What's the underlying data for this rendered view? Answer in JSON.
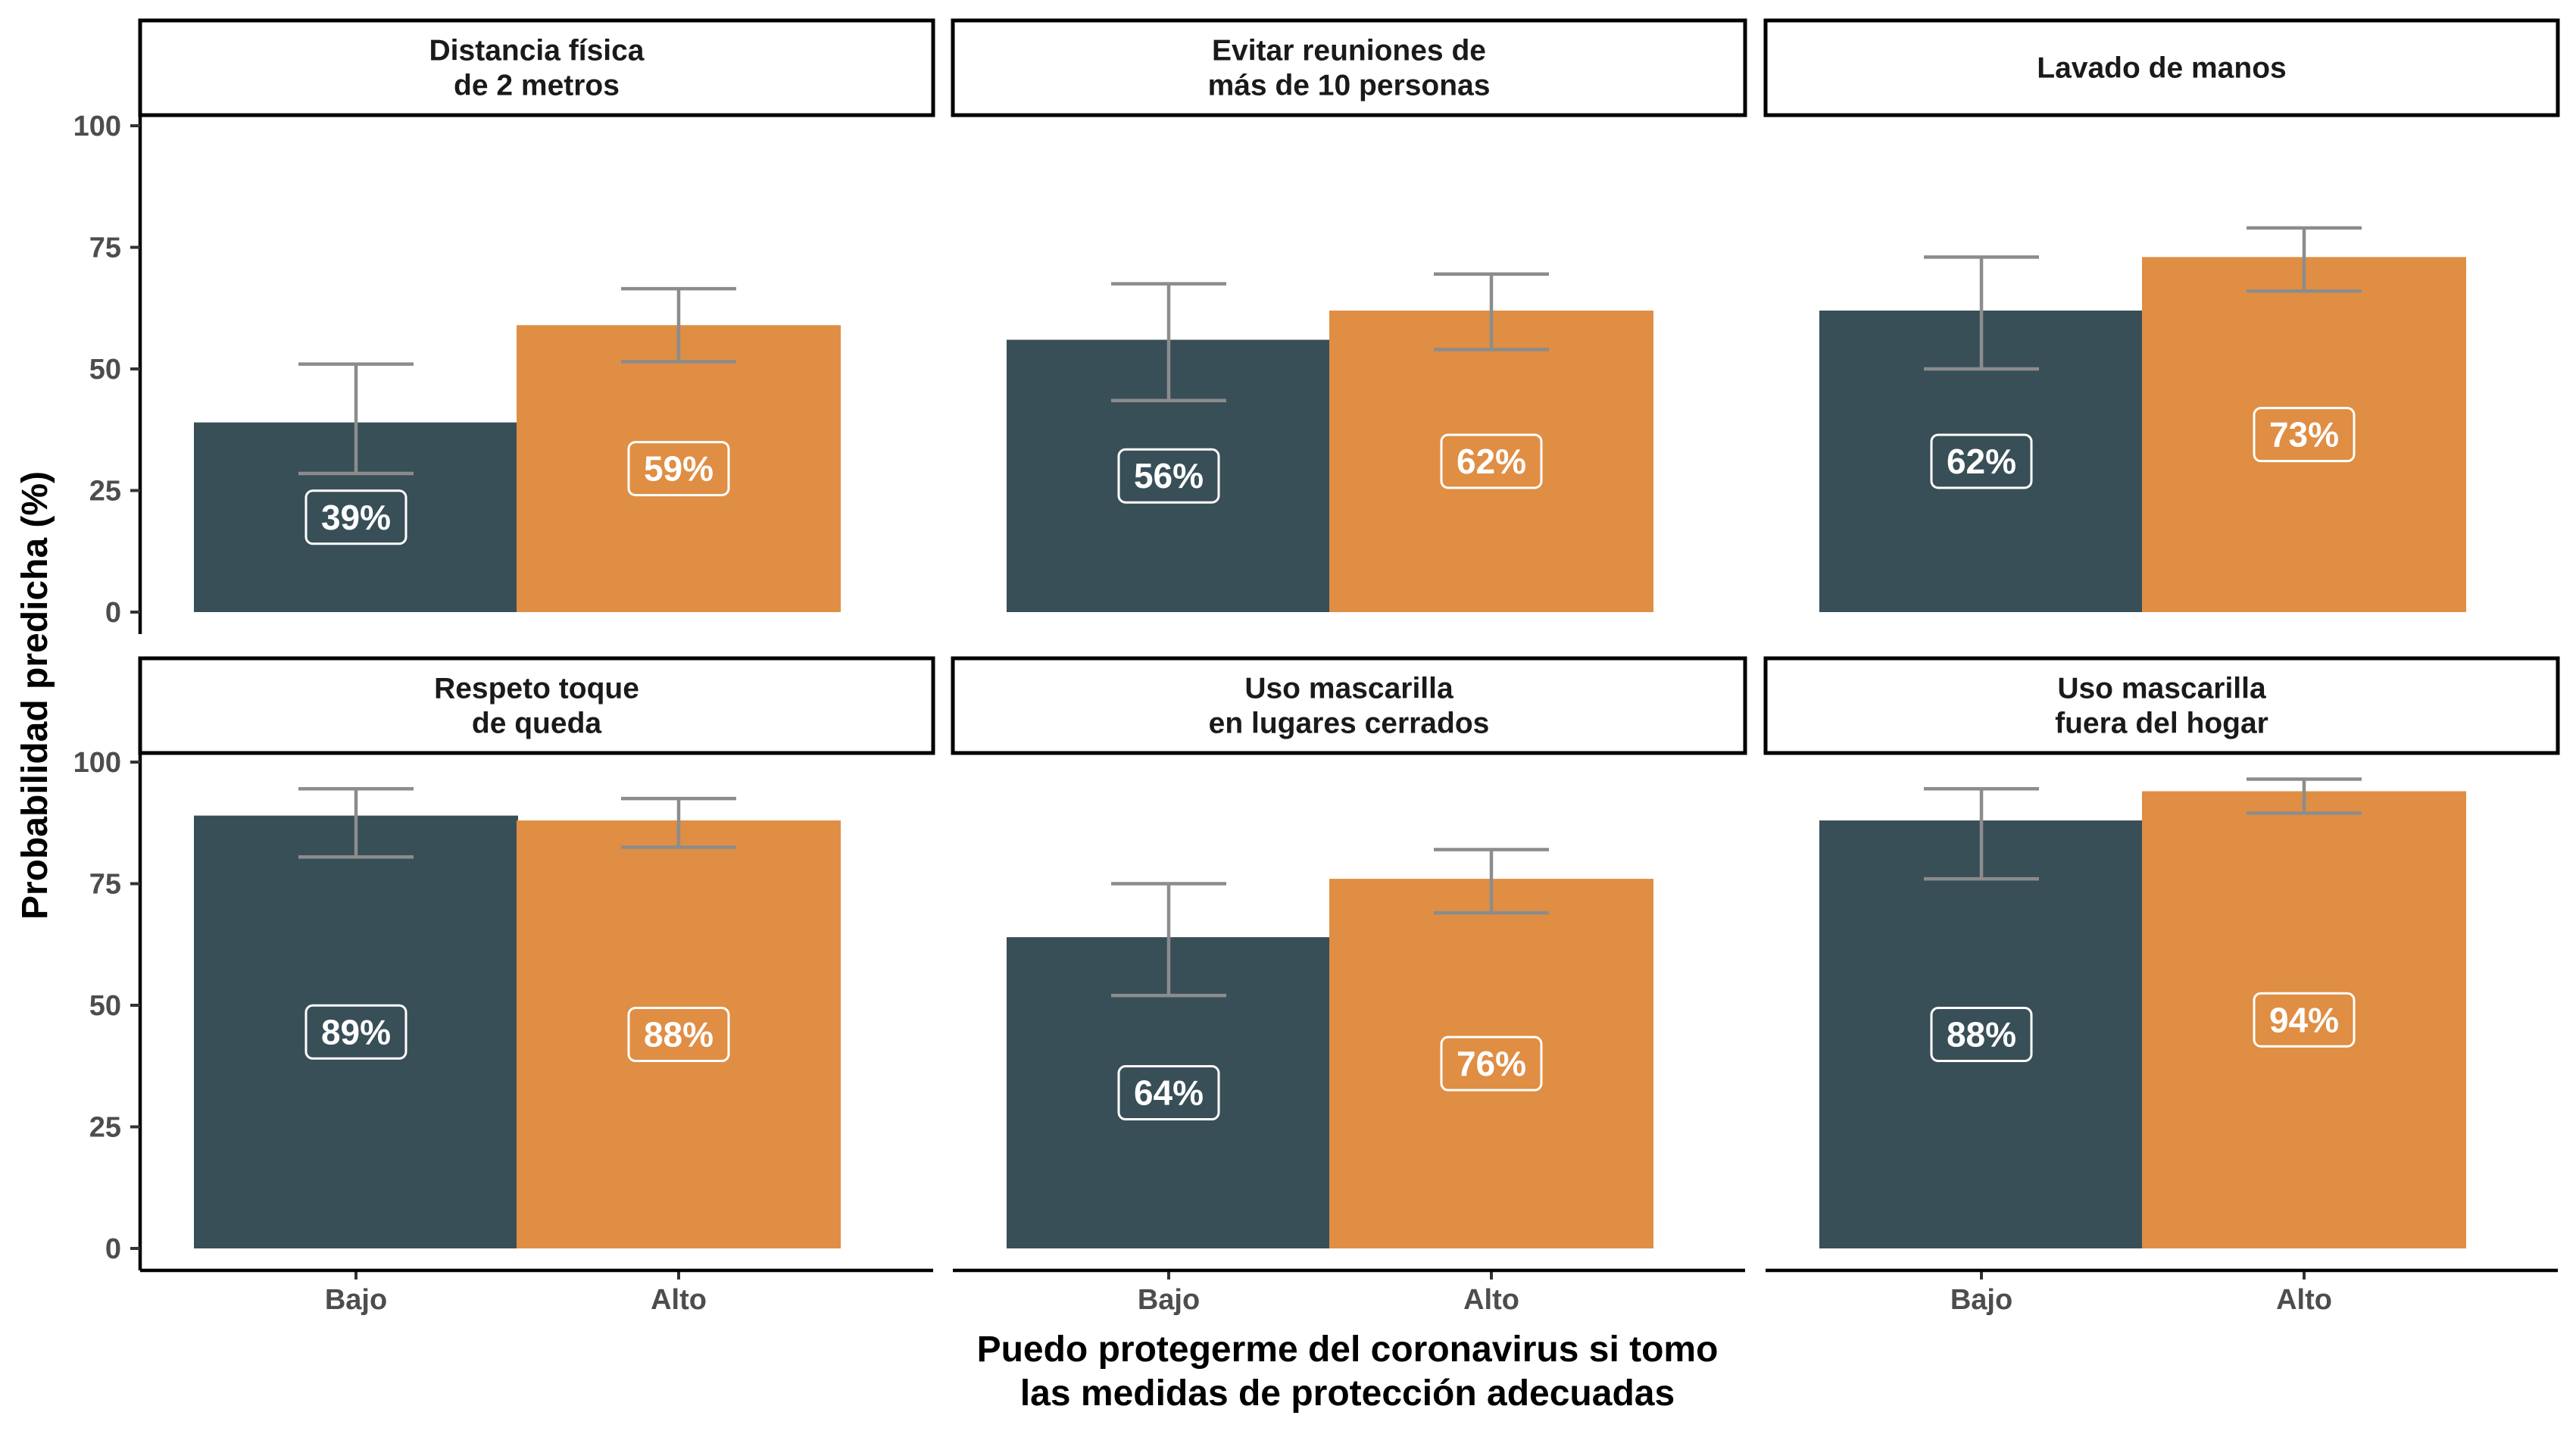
{
  "chart_data": {
    "type": "bar",
    "layout": "faceted 2x3",
    "ylabel": "Probabilidad predicha (%)",
    "xlabel": "Puedo protegerme del coronavirus si tomo las medidas de protección adecuadas",
    "xlabel_lines": [
      "Puedo protegerme del coronavirus si tomo",
      "las medidas de protección adecuadas"
    ],
    "categories": [
      "Bajo",
      "Alto"
    ],
    "category_colors": [
      "#384f57",
      "#df8e44"
    ],
    "error_bar_color": "#8c8c8c",
    "ylim": [
      0,
      100
    ],
    "yticks": [
      0,
      25,
      50,
      75,
      100
    ],
    "grid": false,
    "legend": "none",
    "panels": [
      {
        "title_lines": [
          "Distancia física",
          "de 2 metros"
        ],
        "values": [
          39,
          59
        ],
        "labels": [
          "39%",
          "59%"
        ],
        "ci_low": [
          28.5,
          51.5
        ],
        "ci_high": [
          51,
          66.5
        ]
      },
      {
        "title_lines": [
          "Evitar reuniones de",
          "más de 10 personas"
        ],
        "values": [
          56,
          62
        ],
        "labels": [
          "56%",
          "62%"
        ],
        "ci_low": [
          43.5,
          54
        ],
        "ci_high": [
          67.5,
          69.5
        ]
      },
      {
        "title_lines": [
          "Lavado de manos"
        ],
        "values": [
          62,
          73
        ],
        "labels": [
          "62%",
          "73%"
        ],
        "ci_low": [
          50,
          66
        ],
        "ci_high": [
          73,
          79
        ]
      },
      {
        "title_lines": [
          "Respeto toque",
          "de queda"
        ],
        "values": [
          89,
          88
        ],
        "labels": [
          "89%",
          "88%"
        ],
        "ci_low": [
          80.5,
          82.5
        ],
        "ci_high": [
          94.5,
          92.5
        ]
      },
      {
        "title_lines": [
          "Uso mascarilla",
          "en lugares cerrados"
        ],
        "values": [
          64,
          76
        ],
        "labels": [
          "64%",
          "76%"
        ],
        "ci_low": [
          52,
          69
        ],
        "ci_high": [
          75,
          82
        ]
      },
      {
        "title_lines": [
          "Uso mascarilla",
          "fuera del hogar"
        ],
        "values": [
          88,
          94
        ],
        "labels": [
          "88%",
          "94%"
        ],
        "ci_low": [
          76,
          89.5
        ],
        "ci_high": [
          94.5,
          96.5
        ]
      }
    ]
  }
}
